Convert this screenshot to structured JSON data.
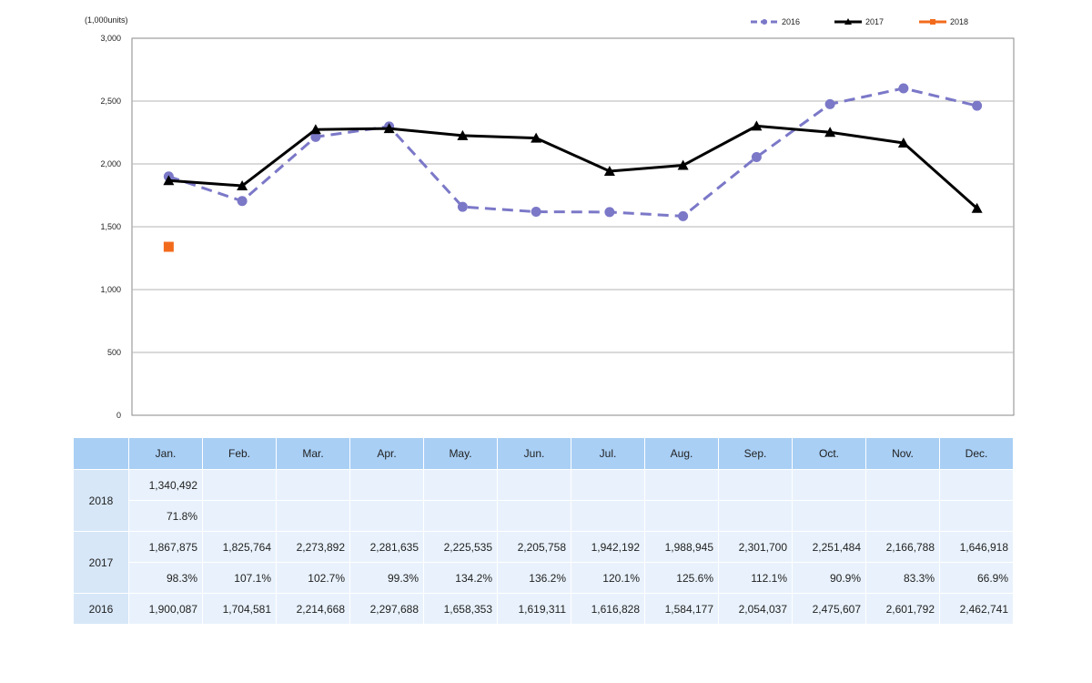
{
  "chart_data": {
    "type": "line",
    "unit_label": "(1,000units)",
    "categories": [
      "Jan.",
      "Feb.",
      "Mar.",
      "Apr.",
      "May.",
      "Jun.",
      "Jul.",
      "Aug.",
      "Sep.",
      "Oct.",
      "Nov.",
      "Dec."
    ],
    "ylim": [
      0,
      3000
    ],
    "yticks": [
      "0",
      "500",
      "1,000",
      "1,500",
      "2,000",
      "2,500",
      "3,000"
    ],
    "ytick_values": [
      0,
      500,
      1000,
      1500,
      2000,
      2500,
      3000
    ],
    "grid": true,
    "legend_position": "top-right",
    "series": [
      {
        "name": "2016",
        "color": "#7b78c8",
        "style": "dashed",
        "marker": "circle",
        "values": [
          1900.087,
          1704.581,
          2214.668,
          2297.688,
          1658.353,
          1619.311,
          1616.828,
          1584.177,
          2054.037,
          2475.607,
          2601.792,
          2462.741
        ]
      },
      {
        "name": "2017",
        "color": "#000000",
        "style": "solid",
        "marker": "triangle",
        "values": [
          1867.875,
          1825.764,
          2273.892,
          2281.635,
          2225.535,
          2205.758,
          1942.192,
          1988.945,
          2301.7,
          2251.484,
          2166.788,
          1646.918
        ]
      },
      {
        "name": "2018",
        "color": "#f26b1d",
        "style": "solid",
        "marker": "square",
        "values": [
          1340.492,
          null,
          null,
          null,
          null,
          null,
          null,
          null,
          null,
          null,
          null,
          null
        ]
      }
    ]
  },
  "table": {
    "months": [
      "Jan.",
      "Feb.",
      "Mar.",
      "Apr.",
      "May.",
      "Jun.",
      "Jul.",
      "Aug.",
      "Sep.",
      "Oct.",
      "Nov.",
      "Dec."
    ],
    "rows": [
      {
        "year": "2018",
        "units": [
          "1,340,492",
          "",
          "",
          "",
          "",
          "",
          "",
          "",
          "",
          "",
          "",
          ""
        ],
        "pct": [
          "71.8%",
          "",
          "",
          "",
          "",
          "",
          "",
          "",
          "",
          "",
          "",
          ""
        ]
      },
      {
        "year": "2017",
        "units": [
          "1,867,875",
          "1,825,764",
          "2,273,892",
          "2,281,635",
          "2,225,535",
          "2,205,758",
          "1,942,192",
          "1,988,945",
          "2,301,700",
          "2,251,484",
          "2,166,788",
          "1,646,918"
        ],
        "pct": [
          "98.3%",
          "107.1%",
          "102.7%",
          "99.3%",
          "134.2%",
          "136.2%",
          "120.1%",
          "125.6%",
          "112.1%",
          "90.9%",
          "83.3%",
          "66.9%"
        ]
      },
      {
        "year": "2016",
        "units": [
          "1,900,087",
          "1,704,581",
          "2,214,668",
          "2,297,688",
          "1,658,353",
          "1,619,311",
          "1,616,828",
          "1,584,177",
          "2,054,037",
          "2,475,607",
          "2,601,792",
          "2,462,741"
        ]
      }
    ]
  }
}
